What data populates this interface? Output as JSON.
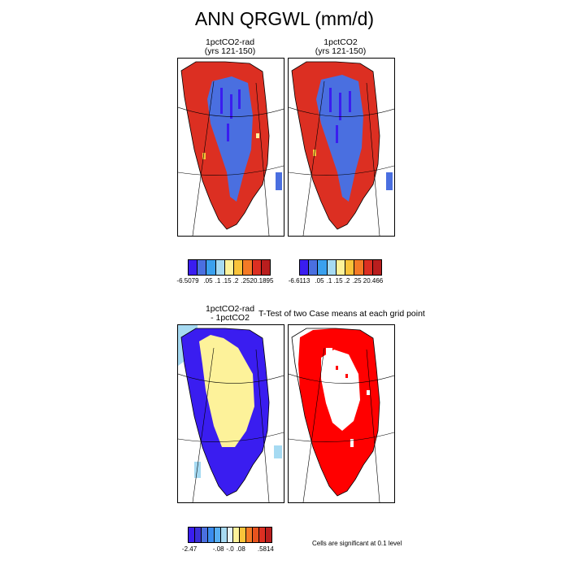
{
  "figure": {
    "title": "ANN QRGWL (mm/d)",
    "panel_top_left": {
      "line1": "1pctCO2-rad",
      "line2": "(yrs 121-150)"
    },
    "panel_top_right": {
      "line1": "1pctCO2",
      "line2": "(yrs 121-150)"
    },
    "panel_bottom_left": {
      "line1": "1pctCO2-rad",
      "line2": "- 1pctCO2"
    },
    "panel_bottom_right": {
      "line1": "T-Test of two Case means at each grid point"
    },
    "significance_note": "Cells are significant at 0.1 level"
  },
  "colors": {
    "abs_scale": [
      "#3a1df0",
      "#4a6fe0",
      "#3aa0ee",
      "#a6daf2",
      "#fdf29a",
      "#f9c33a",
      "#f47a26",
      "#dc2f22",
      "#b91e1e"
    ],
    "diff_scale": [
      "#3a1df0",
      "#3a2fd8",
      "#4a6fe0",
      "#3a8cee",
      "#57aef2",
      "#a6daf2",
      "#e6f5f8",
      "#fdf29a",
      "#f9c33a",
      "#f47a26",
      "#e8531e",
      "#dc2f22",
      "#b91e1e"
    ],
    "significant": "#ff0000"
  },
  "colorbars": {
    "left_labels": [
      "-6.5079",
      ".05",
      ".1",
      ".15",
      ".2",
      ".25",
      "20.1895"
    ],
    "right_labels": [
      "-6.6113",
      ".05",
      ".1",
      ".15",
      ".2",
      ".25",
      "20.466"
    ],
    "diff_labels": [
      "-2.47",
      "-.08",
      "-.0",
      ".08",
      ".5814"
    ]
  },
  "chart_data": [
    {
      "type": "heatmap",
      "title": "1pctCO2-rad (yrs 121-150)",
      "region": "Greenland",
      "variable": "ANN QRGWL",
      "units": "mm/d",
      "color_levels": [
        "-6.5079",
        ".05",
        ".1",
        ".15",
        ".2",
        ".25",
        "20.1895"
      ]
    },
    {
      "type": "heatmap",
      "title": "1pctCO2 (yrs 121-150)",
      "region": "Greenland",
      "variable": "ANN QRGWL",
      "units": "mm/d",
      "color_levels": [
        "-6.6113",
        ".05",
        ".1",
        ".15",
        ".2",
        ".25",
        "20.466"
      ]
    },
    {
      "type": "heatmap",
      "title": "1pctCO2-rad - 1pctCO2",
      "region": "Greenland",
      "variable": "ANN QRGWL",
      "units": "mm/d",
      "color_levels": [
        "-2.47",
        "-.08",
        "-.0",
        ".08",
        ".5814"
      ]
    },
    {
      "type": "heatmap",
      "title": "T-Test of two Case means at each grid point",
      "region": "Greenland",
      "legend": "Cells are significant at 0.1 level"
    }
  ]
}
